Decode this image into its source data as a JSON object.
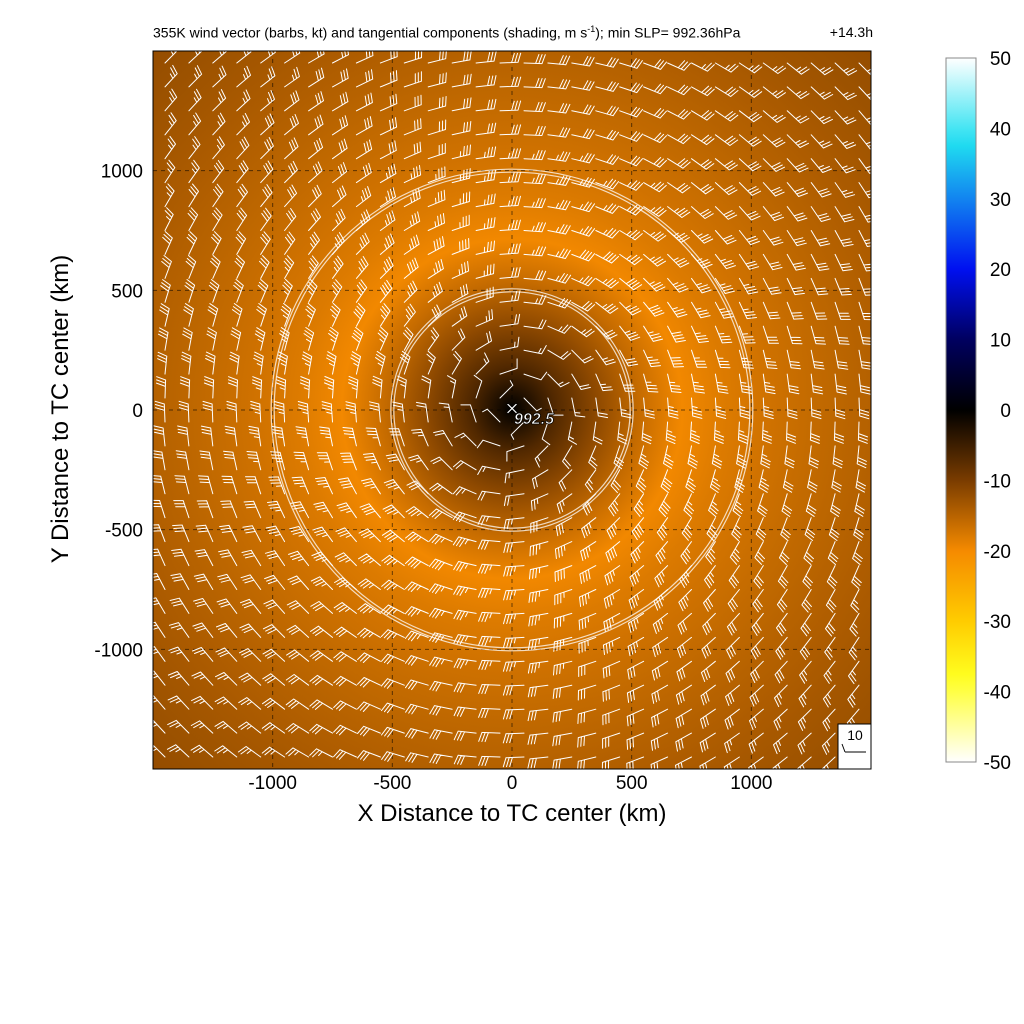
{
  "figure": {
    "title_main": "355K wind vector (barbs, kt) and tangential components (shading, m s",
    "title_sup": "-1",
    "title_rest": "); min SLP= 992.36hPa",
    "timestamp": "+14.3h",
    "xlabel": "X Distance to TC center (km)",
    "ylabel": "Y Distance to TC center (km)",
    "center_marker": "✕",
    "center_label": "992.5",
    "reference_barb_label": "10"
  },
  "chart_data": {
    "type": "heatmap",
    "title": "355K wind vector (barbs, kt) and tangential components (shading, m s-1); min SLP= 992.36hPa",
    "xlabel": "X Distance to TC center (km)",
    "ylabel": "Y Distance to TC center (km)",
    "xlim": [
      -1500,
      1500
    ],
    "ylim": [
      -1500,
      1500
    ],
    "xticks": [
      -1000,
      -500,
      0,
      500,
      1000
    ],
    "yticks": [
      1000,
      500,
      0,
      -500,
      -1000
    ],
    "xtick_labels": [
      "-1000",
      "-500",
      "0",
      "500",
      "1000"
    ],
    "ytick_labels": [
      "1000",
      "500",
      "0",
      "-500",
      "-1000"
    ],
    "grid": "dashed at ticks",
    "range_rings_km": [
      500,
      1000
    ],
    "shading": {
      "variable": "tangential wind",
      "units": "m s-1",
      "center_value": 0,
      "max_negative_value": -20,
      "radius_of_max_km": 700,
      "outer_value": -5
    },
    "colorbar": {
      "ticks": [
        50,
        40,
        30,
        20,
        10,
        0,
        -10,
        -20,
        -30,
        -40,
        -50
      ],
      "tick_labels": [
        "50",
        "40",
        "30",
        "20",
        "10",
        "0",
        "-10",
        "-20",
        "-30",
        "-40",
        "-50"
      ],
      "range": [
        -50,
        50
      ],
      "colors": [
        {
          "value": 50,
          "color": "#ffffff"
        },
        {
          "value": 38,
          "color": "#20e0f0"
        },
        {
          "value": 20,
          "color": "#0010f0"
        },
        {
          "value": 10,
          "color": "#000060"
        },
        {
          "value": 0,
          "color": "#000000"
        },
        {
          "value": -10,
          "color": "#7a3c00"
        },
        {
          "value": -20,
          "color": "#f58a00"
        },
        {
          "value": -30,
          "color": "#ffcc00"
        },
        {
          "value": -38,
          "color": "#ffff20"
        },
        {
          "value": -50,
          "color": "#ffffff"
        }
      ]
    },
    "barbs": {
      "units": "kt",
      "grid_spacing_km": 100,
      "rotation": "clockwise",
      "reference_speed": 10,
      "color": "#ffffff"
    },
    "center": {
      "x": 0,
      "y": 0,
      "min_slp_hpa": 992.36,
      "label": "992.5"
    }
  }
}
